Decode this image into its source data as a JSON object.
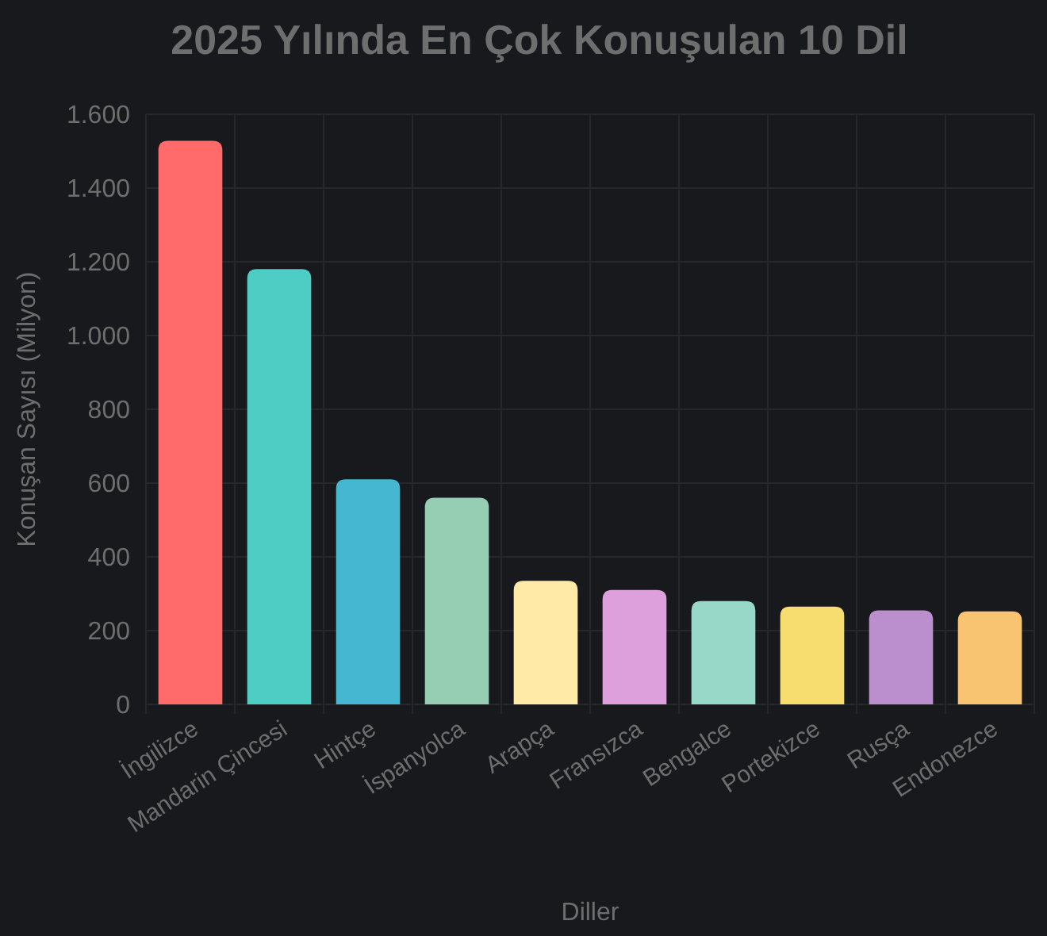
{
  "chart_data": {
    "type": "bar",
    "title": "2025 Yılında En Çok Konuşulan 10 Dil",
    "xlabel": "Diller",
    "ylabel": "Konuşan Sayısı (Milyon)",
    "categories": [
      "İngilizce",
      "Mandarin Çincesi",
      "Hintçe",
      "İspanyolca",
      "Arapça",
      "Fransızca",
      "Bengalce",
      "Portekizce",
      "Rusça",
      "Endonezce"
    ],
    "values": [
      1528,
      1180,
      610,
      560,
      335,
      310,
      280,
      265,
      255,
      252
    ],
    "colors": [
      "#ff6b6b",
      "#4ecdc4",
      "#45b7d1",
      "#96ceb4",
      "#ffeaa7",
      "#dda0dd",
      "#98d8c8",
      "#f7dc6f",
      "#bb8fce",
      "#f8c471"
    ],
    "ylim": [
      0,
      1600
    ],
    "yticks": [
      {
        "value": 0,
        "label": "0"
      },
      {
        "value": 200,
        "label": "200"
      },
      {
        "value": 400,
        "label": "400"
      },
      {
        "value": 600,
        "label": "600"
      },
      {
        "value": 800,
        "label": "800"
      },
      {
        "value": 1000,
        "label": "1.000"
      },
      {
        "value": 1200,
        "label": "1.200"
      },
      {
        "value": 1400,
        "label": "1.400"
      },
      {
        "value": 1600,
        "label": "1.600"
      }
    ],
    "grid": true
  }
}
